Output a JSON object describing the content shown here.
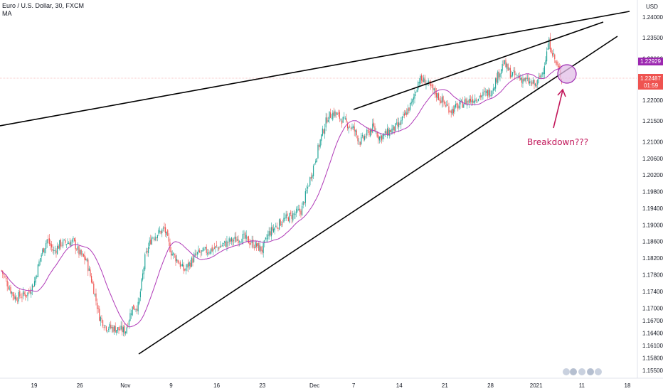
{
  "header": {
    "symbol_line": "Euro / U.S. Dollar, 30, FXCM",
    "indicator": "MA"
  },
  "currency_label": "USD",
  "colors": {
    "bull": "#26a69a",
    "bear": "#ef5350",
    "ma": "#b03ab8",
    "trendline": "#000000",
    "annotation": "#c2185b",
    "ma_badge": "#9c27b0",
    "price_badge": "#ef5350"
  },
  "chart_data": {
    "type": "line",
    "instrument": "Euro / U.S. Dollar, 30, FXCM",
    "x_ticks": [
      "19",
      "26",
      "Nov",
      "9",
      "16",
      "23",
      "Dec",
      "7",
      "14",
      "21",
      "28",
      "2021",
      "11",
      "18"
    ],
    "y_ticks": [
      "1.24000",
      "1.23500",
      "1.23000",
      "1.22500",
      "1.22000",
      "1.21500",
      "1.21000",
      "1.20600",
      "1.20200",
      "1.19800",
      "1.19400",
      "1.19000",
      "1.18600",
      "1.18200",
      "1.17800",
      "1.17400",
      "1.17000",
      "1.16700",
      "1.16400",
      "1.16100",
      "1.15800",
      "1.15500"
    ],
    "price_path": [
      [
        "2020-10-14",
        1.179
      ],
      [
        "2020-10-15",
        1.1755
      ],
      [
        "2020-10-16",
        1.1725
      ],
      [
        "2020-10-18",
        1.1735
      ],
      [
        "2020-10-19",
        1.176
      ],
      [
        "2020-10-20",
        1.1825
      ],
      [
        "2020-10-21",
        1.1865
      ],
      [
        "2020-10-22",
        1.1835
      ],
      [
        "2020-10-23",
        1.1855
      ],
      [
        "2020-10-25",
        1.186
      ],
      [
        "2020-10-26",
        1.183
      ],
      [
        "2020-10-27",
        1.1815
      ],
      [
        "2020-10-28",
        1.1755
      ],
      [
        "2020-10-29",
        1.168
      ],
      [
        "2020-10-30",
        1.1655
      ],
      [
        "2020-11-02",
        1.1645
      ],
      [
        "2020-11-03",
        1.17
      ],
      [
        "2020-11-04",
        1.1705
      ],
      [
        "2020-11-05",
        1.182
      ],
      [
        "2020-11-06",
        1.187
      ],
      [
        "2020-11-08",
        1.189
      ],
      [
        "2020-11-09",
        1.1835
      ],
      [
        "2020-11-10",
        1.1815
      ],
      [
        "2020-11-11",
        1.179
      ],
      [
        "2020-11-12",
        1.181
      ],
      [
        "2020-11-13",
        1.183
      ],
      [
        "2020-11-16",
        1.1845
      ],
      [
        "2020-11-18",
        1.186
      ],
      [
        "2020-11-20",
        1.187
      ],
      [
        "2020-11-23",
        1.184
      ],
      [
        "2020-11-24",
        1.188
      ],
      [
        "2020-11-26",
        1.191
      ],
      [
        "2020-11-29",
        1.1935
      ],
      [
        "2020-12-01",
        1.205
      ],
      [
        "2020-12-02",
        1.211
      ],
      [
        "2020-12-03",
        1.216
      ],
      [
        "2020-12-04",
        1.217
      ],
      [
        "2020-12-07",
        1.213
      ],
      [
        "2020-12-08",
        1.21
      ],
      [
        "2020-12-10",
        1.2135
      ],
      [
        "2020-12-11",
        1.211
      ],
      [
        "2020-12-14",
        1.214
      ],
      [
        "2020-12-16",
        1.2195
      ],
      [
        "2020-12-17",
        1.225
      ],
      [
        "2020-12-18",
        1.2245
      ],
      [
        "2020-12-21",
        1.219
      ],
      [
        "2020-12-22",
        1.2175
      ],
      [
        "2020-12-24",
        1.2195
      ],
      [
        "2020-12-28",
        1.222
      ],
      [
        "2020-12-30",
        1.229
      ],
      [
        "2020-12-31",
        1.2265
      ],
      [
        "2021-01-04",
        1.2235
      ],
      [
        "2021-01-05",
        1.227
      ],
      [
        "2021-01-06",
        1.234
      ],
      [
        "2021-01-07",
        1.229
      ],
      [
        "2021-01-08",
        1.225
      ]
    ],
    "current_price_label": "1.22487",
    "countdown_label": "01:59",
    "ma_value_label": "1.22929",
    "annotations": [
      "Breakdown???"
    ],
    "legend": "none",
    "grid": false
  }
}
